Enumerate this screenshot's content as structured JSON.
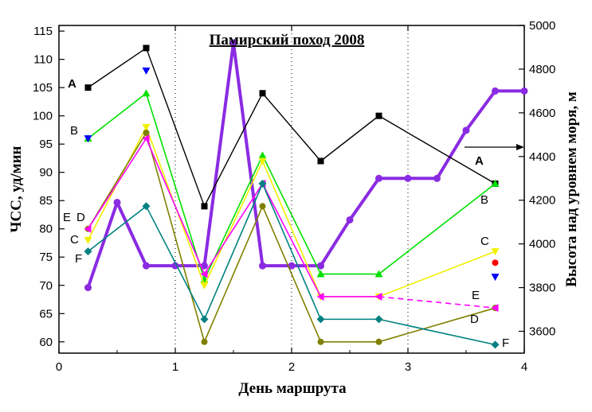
{
  "chart_data": {
    "type": "line",
    "title": "Памирский поход 2008",
    "xlabel": "День маршрута",
    "ylabel": "ЧСС, уд/мин",
    "y2label": "Высота над уровнем моря, м",
    "xlim": [
      0,
      4
    ],
    "ylim": [
      58,
      116
    ],
    "y2lim": [
      3500,
      5000
    ],
    "x_ticks": [
      "0",
      "1",
      "2",
      "3",
      "4"
    ],
    "y_ticks": [
      "60",
      "65",
      "70",
      "75",
      "80",
      "85",
      "90",
      "95",
      "100",
      "105",
      "110",
      "115"
    ],
    "y2_ticks": [
      "3600",
      "3800",
      "4000",
      "4200",
      "4400",
      "4600",
      "4800",
      "5000"
    ],
    "vertical_dotted_lines_at": [
      1,
      2,
      3
    ],
    "series": [
      {
        "label": "A",
        "color": "#000000",
        "marker": "square",
        "x": [
          0.25,
          0.75,
          1.25,
          1.75,
          2.25,
          2.75,
          3.75
        ],
        "y": [
          105,
          112,
          84,
          104,
          92,
          100,
          88
        ]
      },
      {
        "label": "B",
        "color": "#00e000",
        "marker": "triangle-up",
        "x": [
          0.25,
          0.75,
          1.25,
          1.75,
          2.25,
          2.75,
          3.75
        ],
        "y": [
          96,
          104,
          71,
          93,
          72,
          72,
          88
        ]
      },
      {
        "label": "C",
        "color": "#f0f000",
        "marker": "triangle-down",
        "x": [
          0.25,
          0.75,
          1.25,
          1.75,
          2.25,
          2.75,
          3.75
        ],
        "y": [
          78,
          98,
          70,
          92,
          68,
          68,
          76
        ]
      },
      {
        "label": "D",
        "color": "#808000",
        "marker": "circle",
        "x": [
          0.25,
          0.75,
          1.25,
          1.75,
          2.25,
          2.75,
          3.75
        ],
        "y": [
          80,
          97,
          60,
          84,
          60,
          60,
          66
        ]
      },
      {
        "label": "E",
        "color": "#ff00ff",
        "marker": "triangle-left",
        "x": [
          0.25,
          0.75,
          1.25,
          1.75,
          2.25,
          2.75,
          3.75
        ],
        "y": [
          80,
          96,
          72,
          88,
          68,
          68,
          66
        ]
      },
      {
        "label": "F",
        "color": "#008080",
        "marker": "diamond",
        "x": [
          0.25,
          0.75,
          1.25,
          1.75,
          2.25,
          2.75,
          3.75
        ],
        "y": [
          76,
          84,
          64,
          88,
          64,
          64,
          59.5
        ]
      }
    ],
    "altitude_series": {
      "color": "#8a2be2",
      "axis": "right",
      "x": [
        0.25,
        0.5,
        0.75,
        1.0,
        1.25,
        1.5,
        1.75,
        2.0,
        2.25,
        2.5,
        2.75,
        3.0,
        3.25,
        3.5,
        3.75,
        4.0
      ],
      "y": [
        3800,
        4190,
        3900,
        3900,
        3900,
        4920,
        3900,
        3900,
        3900,
        4110,
        4300,
        4300,
        4300,
        4520,
        4700,
        4700
      ]
    },
    "extra_markers": [
      {
        "x": 0.75,
        "y": 108,
        "color": "#0000ff",
        "marker": "triangle-down"
      },
      {
        "x": 0.25,
        "y": 96,
        "color": "#0000ff",
        "marker": "triangle-down"
      },
      {
        "x": 3.75,
        "y": 74,
        "color": "#ff0000",
        "marker": "circle"
      },
      {
        "x": 3.75,
        "y": 71.5,
        "color": "#0000ff",
        "marker": "triangle-down"
      }
    ]
  }
}
